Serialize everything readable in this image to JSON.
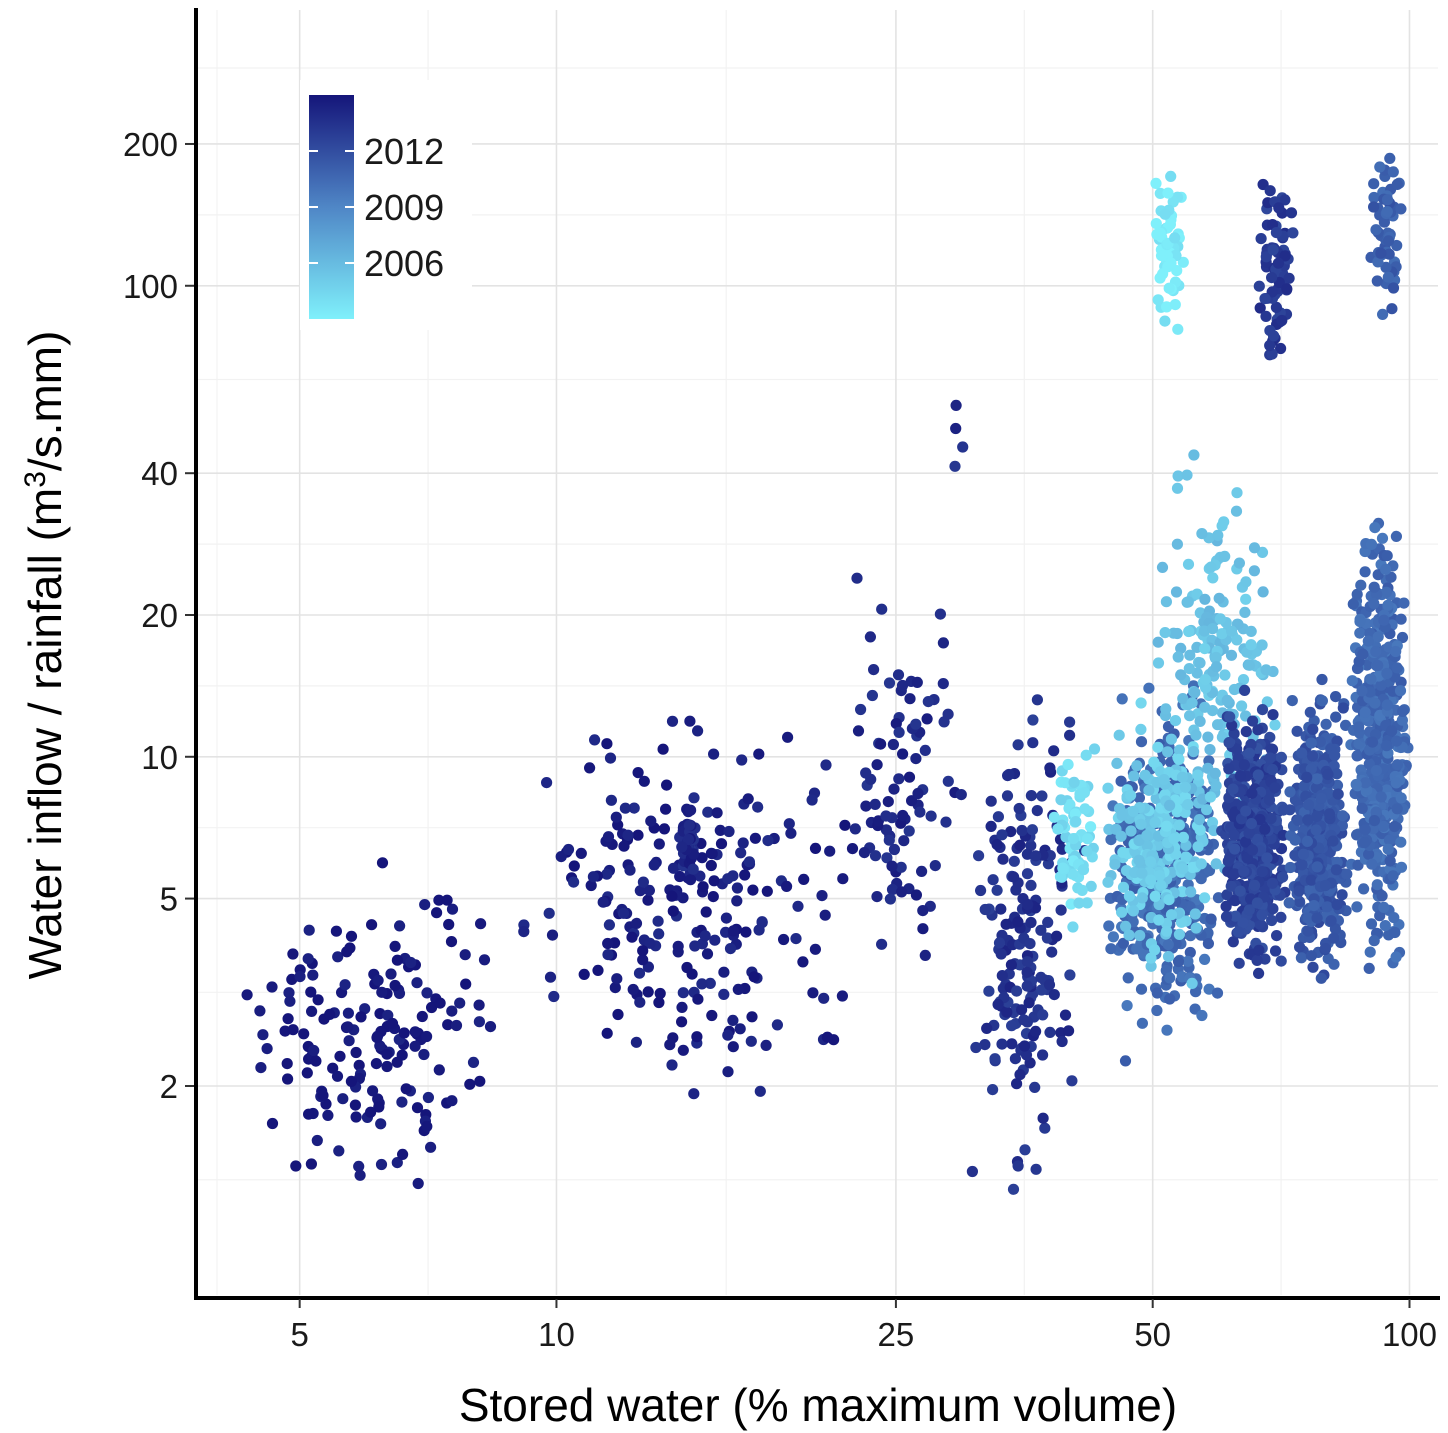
{
  "chart_data": {
    "type": "scatter",
    "title": "",
    "xlabel": "Stored water (% maximum volume)",
    "ylabel_main": "Water inflow / rainfall (m",
    "ylabel_sup": "3",
    "ylabel_tail": "/s.mm)",
    "x_scale": "log",
    "y_scale": "log",
    "xlim": [
      3.8,
      108
    ],
    "ylim": [
      0.72,
      385
    ],
    "x_ticks": [
      5,
      10,
      25,
      50,
      100
    ],
    "x_tick_labels": [
      "5",
      "10",
      "25",
      "50",
      "100"
    ],
    "y_ticks": [
      2,
      5,
      10,
      20,
      40,
      100,
      200
    ],
    "y_tick_labels": [
      "2",
      "5",
      "10",
      "20",
      "40",
      "100",
      "200"
    ],
    "grid": true,
    "legend": {
      "type": "colorbar",
      "placement": "top-left",
      "variable": "year",
      "range": [
        2003,
        2015
      ],
      "ticks": [
        2012,
        2009,
        2006
      ],
      "tick_labels": [
        "2012",
        "2009",
        "2006"
      ],
      "color_low": "#7ff0fb",
      "color_high": "#15157a"
    },
    "colors": {
      "low_year": "#7ff0fb",
      "mid_year": "#4f86c6",
      "high_year": "#15157a"
    },
    "clusters": [
      {
        "year": 2015,
        "x_range": [
          4.1,
          9.0
        ],
        "y_range": [
          0.9,
          7.0
        ],
        "points": 170
      },
      {
        "year": 2014.5,
        "x_range": [
          9.0,
          23.0
        ],
        "y_range": [
          1.5,
          16.0
        ],
        "points": 230
      },
      {
        "year": 2014,
        "x_range": [
          14.0,
          14.6
        ],
        "y_range": [
          5.0,
          9.0
        ],
        "points": 45
      },
      {
        "year": 2014,
        "x_range": [
          22.0,
          30.0
        ],
        "y_range": [
          2.5,
          32.0
        ],
        "points": 90
      },
      {
        "year": 2014,
        "x_range": [
          29.0,
          30.0
        ],
        "y_range": [
          40.0,
          63.0
        ],
        "points": 4
      },
      {
        "year": 2013.5,
        "x_range": [
          30.0,
          42.0
        ],
        "y_range": [
          1.0,
          17.0
        ],
        "points": 190
      },
      {
        "year": 2004,
        "x_range": [
          38.0,
          43.0
        ],
        "y_range": [
          3.5,
          13.0
        ],
        "points": 70
      },
      {
        "year": 2010.5,
        "x_range": [
          44.0,
          60.0
        ],
        "y_range": [
          2.0,
          16.0
        ],
        "points": 420
      },
      {
        "year": 2005,
        "x_range": [
          44.0,
          58.0
        ],
        "y_range": [
          3.0,
          14.0
        ],
        "points": 230
      },
      {
        "year": 2005.5,
        "x_range": [
          50.0,
          70.0
        ],
        "y_range": [
          5.0,
          48.0
        ],
        "points": 210
      },
      {
        "year": 2003.3,
        "x_range": [
          50.0,
          55.0
        ],
        "y_range": [
          70.0,
          205.0
        ],
        "points": 60
      },
      {
        "year": 2012.5,
        "x_range": [
          60.0,
          72.0
        ],
        "y_range": [
          3.0,
          15.0
        ],
        "points": 500
      },
      {
        "year": 2013,
        "x_range": [
          66.0,
          74.0
        ],
        "y_range": [
          60.0,
          190.0
        ],
        "points": 80
      },
      {
        "year": 2011.5,
        "x_range": [
          72.0,
          85.0
        ],
        "y_range": [
          3.0,
          16.0
        ],
        "points": 460
      },
      {
        "year": 2010.5,
        "x_range": [
          85.0,
          100.0
        ],
        "y_range": [
          3.0,
          40.0
        ],
        "points": 500
      },
      {
        "year": 2011,
        "x_range": [
          90.0,
          98.0
        ],
        "y_range": [
          75.0,
          210.0
        ],
        "points": 60
      }
    ]
  }
}
